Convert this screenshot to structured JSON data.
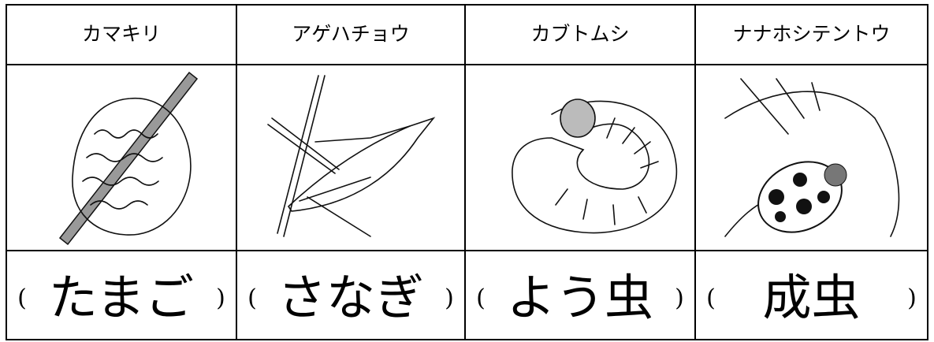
{
  "table": {
    "columns": [
      {
        "name": "カマキリ",
        "answer": {
          "open": "(",
          "text": "たまご",
          "close": ")"
        }
      },
      {
        "name": "アゲハチョウ",
        "answer": {
          "open": "(",
          "text": "さなぎ",
          "close": ")"
        }
      },
      {
        "name": "カブトムシ",
        "answer": {
          "open": "(",
          "text": "よう虫",
          "close": ")"
        }
      },
      {
        "name": "ナナホシテントウ",
        "answer": {
          "open": "(",
          "text": "成虫",
          "close": ")"
        }
      }
    ]
  }
}
